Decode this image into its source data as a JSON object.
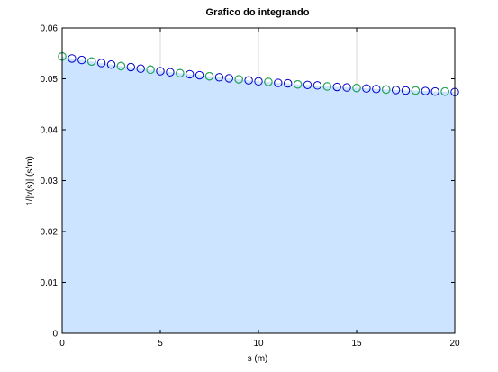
{
  "chart_data": {
    "type": "area",
    "title": "Grafico do integrando",
    "xlabel": "s (m)",
    "ylabel": "1/|v(s)| (s/m)",
    "xlim": [
      0,
      20
    ],
    "ylim": [
      0,
      0.06
    ],
    "xticks": [
      "0",
      "5",
      "10",
      "15",
      "20"
    ],
    "yticks": [
      "0",
      "0.01",
      "0.02",
      "0.03",
      "0.04",
      "0.05",
      "0.06"
    ],
    "grid": "vertical lines only",
    "area_color": "#cce4ff",
    "series": [
      {
        "marker": "circle",
        "color": "#0000cc",
        "x": [
          0,
          0.5,
          1,
          1.5,
          2,
          2.5,
          3,
          3.5,
          4,
          4.5,
          5,
          5.5,
          6,
          6.5,
          7,
          7.5,
          8,
          8.5,
          9,
          9.5,
          10,
          10.5,
          11,
          11.5,
          12,
          12.5,
          13,
          13.5,
          14,
          14.5,
          15,
          15.5,
          16,
          16.5,
          17,
          17.5,
          18,
          18.5,
          19,
          19.5,
          20
        ],
        "y": [
          0.0544,
          0.054,
          0.0537,
          0.0534,
          0.0531,
          0.0528,
          0.0525,
          0.0523,
          0.052,
          0.0518,
          0.0515,
          0.0513,
          0.0511,
          0.0509,
          0.0507,
          0.0505,
          0.0503,
          0.0501,
          0.0499,
          0.0497,
          0.0495,
          0.0494,
          0.0492,
          0.0491,
          0.0489,
          0.0488,
          0.0487,
          0.0485,
          0.0484,
          0.0483,
          0.0482,
          0.0481,
          0.048,
          0.0479,
          0.0478,
          0.0477,
          0.0477,
          0.0476,
          0.0475,
          0.0475,
          0.0474
        ]
      },
      {
        "marker": "circle",
        "color": "#22bb44",
        "x": [
          0,
          1.5,
          3,
          4.5,
          6,
          7.5,
          9,
          10.5,
          12,
          13.5,
          15,
          16.5,
          18,
          19.5
        ],
        "y": [
          0.0544,
          0.0534,
          0.0525,
          0.0518,
          0.0511,
          0.0505,
          0.0499,
          0.0494,
          0.0489,
          0.0485,
          0.0482,
          0.0479,
          0.0477,
          0.0475
        ]
      }
    ]
  }
}
